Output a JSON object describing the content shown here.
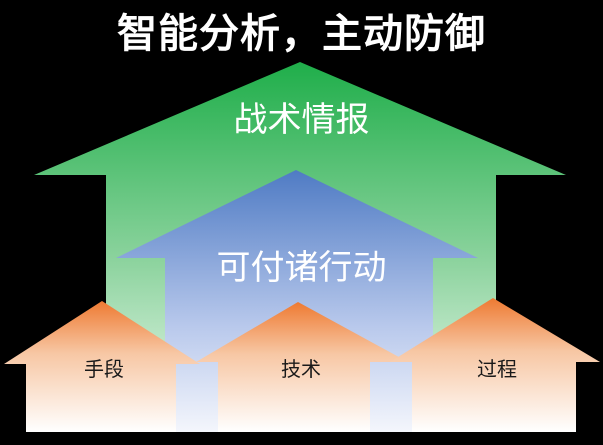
{
  "title": "智能分析，主动防御",
  "layers": {
    "top": "战术情报",
    "middle": "可付诸行动",
    "bottom": [
      "手段",
      "技术",
      "过程"
    ]
  },
  "colors": {
    "background": "#000000",
    "top_arrow": "#1fae4a",
    "middle_arrow": "#4f7bc4",
    "house": "#ee7a32"
  }
}
